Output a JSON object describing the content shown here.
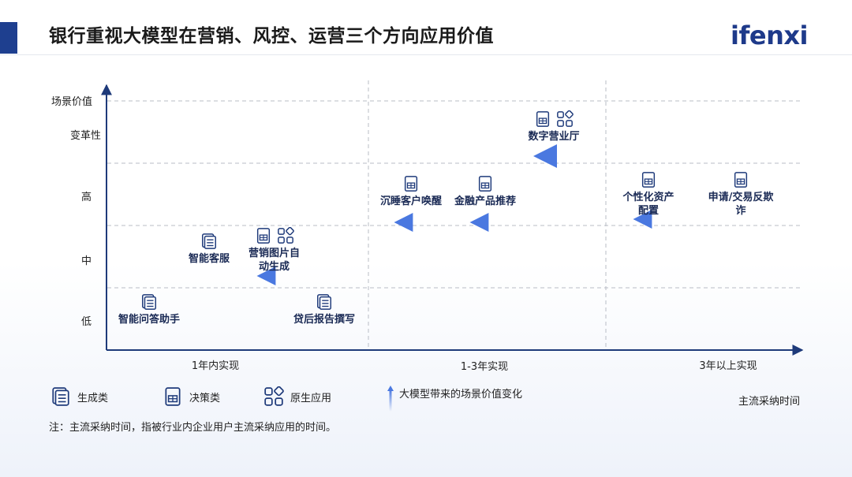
{
  "header": {
    "title": "银行重视大模型在营销、风控、运营三个方向应用价值",
    "logo": "ifenxi"
  },
  "y_axis": {
    "title": "场景价值",
    "levels": [
      "变革性",
      "高",
      "中",
      "低"
    ]
  },
  "x_axis": {
    "periods": [
      "1年内实现",
      "1-3年实现",
      "3年以上实现"
    ],
    "title": "主流采纳时间"
  },
  "items": [
    {
      "id": "smart-qa",
      "lines": [
        "智能问答助手"
      ],
      "types": [
        "generative"
      ]
    },
    {
      "id": "smart-cs",
      "lines": [
        "智能客服"
      ],
      "types": [
        "generative"
      ]
    },
    {
      "id": "marketing-img",
      "lines": [
        "营销图片自",
        "动生成"
      ],
      "types": [
        "decision",
        "native"
      ]
    },
    {
      "id": "post-loan",
      "lines": [
        "贷后报告撰写"
      ],
      "types": [
        "generative"
      ]
    },
    {
      "id": "dormant",
      "lines": [
        "沉睡客户唤醒"
      ],
      "types": [
        "decision"
      ]
    },
    {
      "id": "fin-product",
      "lines": [
        "金融产品推荐"
      ],
      "types": [
        "decision"
      ]
    },
    {
      "id": "digital-hall",
      "lines": [
        "数字营业厅"
      ],
      "types": [
        "decision",
        "native"
      ]
    },
    {
      "id": "asset-alloc",
      "lines": [
        "个性化资产",
        "配置"
      ],
      "types": [
        "decision"
      ]
    },
    {
      "id": "anti-fraud",
      "lines": [
        "申请/交易反欺",
        "诈"
      ],
      "types": [
        "decision"
      ]
    }
  ],
  "legend": {
    "generative": "生成类",
    "decision": "决策类",
    "native": "原生应用",
    "arrow": "大模型带来的场景价值变化"
  },
  "footnote": "注：主流采纳时间，指被行业内企业用户主流采纳应用的时间。",
  "colors": {
    "accent": "#1e3f8f",
    "arrow": "#4a78e0",
    "axis": "#1e3a7a"
  }
}
